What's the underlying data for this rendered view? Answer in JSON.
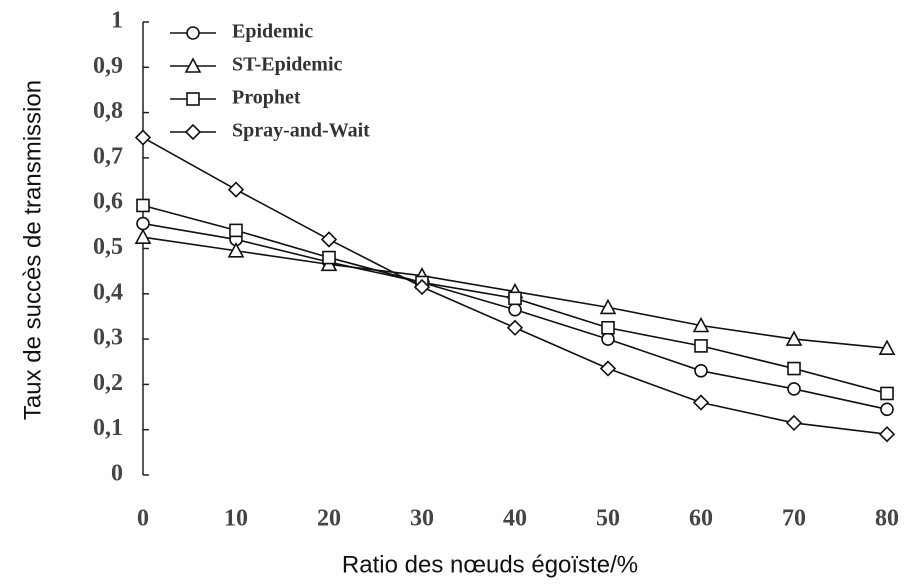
{
  "chart_data": {
    "type": "line",
    "x_label": "Ratio des nœuds égoïste/%",
    "y_label": "Taux de succès de transmission",
    "x": [
      0,
      10,
      20,
      30,
      40,
      50,
      60,
      70,
      80
    ],
    "xlim": [
      0,
      80
    ],
    "xticks": [
      0,
      10,
      20,
      30,
      40,
      50,
      60,
      70,
      80
    ],
    "ylim": [
      0,
      1
    ],
    "yticks": [
      0,
      {
        "value": 0.1,
        "label": "0,1"
      },
      {
        "value": 0.2,
        "label": "0,2"
      },
      {
        "value": 0.3,
        "label": "0,3"
      },
      {
        "value": 0.4,
        "label": "0,4"
      },
      {
        "value": 0.5,
        "label": "0,5"
      },
      {
        "value": 0.6,
        "label": "0,6"
      },
      {
        "value": 0.7,
        "label": "0,7"
      },
      {
        "value": 0.8,
        "label": "0,8"
      },
      {
        "value": 0.9,
        "label": "0,9"
      },
      1
    ],
    "legend": "upper left",
    "series": [
      {
        "name": "Epidemic",
        "color": "#111111",
        "marker": "circle",
        "values": [
          0.555,
          0.52,
          0.47,
          0.425,
          0.365,
          0.3,
          0.23,
          0.19,
          0.145
        ]
      },
      {
        "name": "ST-Epidemic",
        "color": "#111111",
        "marker": "triangle",
        "values": [
          0.525,
          0.495,
          0.465,
          0.44,
          0.405,
          0.37,
          0.33,
          0.3,
          0.28
        ]
      },
      {
        "name": "Prophet",
        "color": "#111111",
        "marker": "square",
        "values": [
          0.595,
          0.54,
          0.48,
          0.425,
          0.39,
          0.325,
          0.285,
          0.235,
          0.18
        ]
      },
      {
        "name": "Spray-and-Wait",
        "color": "#111111",
        "marker": "diamond",
        "values": [
          0.745,
          0.63,
          0.52,
          0.415,
          0.325,
          0.235,
          0.16,
          0.115,
          0.09
        ]
      }
    ]
  }
}
